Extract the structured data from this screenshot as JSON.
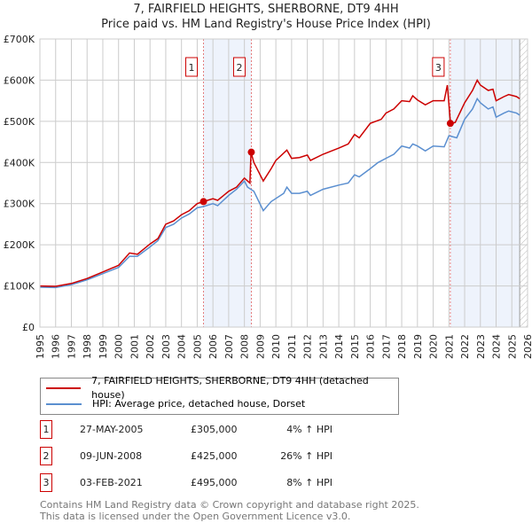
{
  "chart_data": {
    "type": "line",
    "title": "7, FAIRFIELD HEIGHTS, SHERBORNE, DT9 4HH",
    "subtitle": "Price paid vs. HM Land Registry's House Price Index (HPI)",
    "xlim": [
      1995,
      2026
    ],
    "ylim": [
      0,
      700000
    ],
    "x_ticks": [
      "1995",
      "1996",
      "1997",
      "1998",
      "1999",
      "2000",
      "2001",
      "2002",
      "2003",
      "2004",
      "2005",
      "2006",
      "2007",
      "2008",
      "2009",
      "2010",
      "2011",
      "2012",
      "2013",
      "2014",
      "2015",
      "2016",
      "2017",
      "2018",
      "2019",
      "2020",
      "2021",
      "2022",
      "2023",
      "2024",
      "2025",
      "2026"
    ],
    "y_ticks": [
      {
        "v": 0,
        "label": "£0"
      },
      {
        "v": 100000,
        "label": "£100K"
      },
      {
        "v": 200000,
        "label": "£200K"
      },
      {
        "v": 300000,
        "label": "£300K"
      },
      {
        "v": 400000,
        "label": "£400K"
      },
      {
        "v": 500000,
        "label": "£500K"
      },
      {
        "v": 600000,
        "label": "£600K"
      },
      {
        "v": 700000,
        "label": "£700K"
      }
    ],
    "grid": true,
    "series": [
      {
        "name": "7, FAIRFIELD HEIGHTS, SHERBORNE, DT9 4HH (detached house)",
        "color": "#cc0000",
        "x": [
          1995,
          1996,
          1997,
          1998,
          1999,
          2000,
          2000.7,
          2001.2,
          2002,
          2002.5,
          2003,
          2003.5,
          2004,
          2004.5,
          2005,
          2005.4,
          2006,
          2006.3,
          2007,
          2007.5,
          2008,
          2008.35,
          2008.42,
          2008.6,
          2009.2,
          2009.7,
          2010,
          2010.7,
          2011,
          2011.5,
          2012,
          2012.2,
          2013,
          2014,
          2014.6,
          2015,
          2015.3,
          2016,
          2016.7,
          2017,
          2017.5,
          2018,
          2018.5,
          2018.7,
          2019,
          2019.5,
          2020,
          2020.7,
          2020.9,
          2021.1,
          2021.4,
          2022,
          2022.5,
          2022.8,
          2023,
          2023.5,
          2023.8,
          2024,
          2024.5,
          2024.8,
          2025.3,
          2025.5
        ],
        "y": [
          100000,
          99000,
          106000,
          118000,
          134000,
          150000,
          180000,
          177000,
          202000,
          215000,
          250000,
          258000,
          273000,
          283000,
          300000,
          305000,
          312000,
          308000,
          330000,
          340000,
          362000,
          350000,
          425000,
          400000,
          355000,
          385000,
          405000,
          430000,
          410000,
          412000,
          418000,
          405000,
          420000,
          435000,
          445000,
          468000,
          460000,
          495000,
          505000,
          520000,
          530000,
          550000,
          548000,
          562000,
          552000,
          540000,
          550000,
          550000,
          588000,
          495000,
          497000,
          545000,
          575000,
          600000,
          588000,
          575000,
          578000,
          550000,
          560000,
          565000,
          560000,
          555000
        ]
      },
      {
        "name": "HPI: Average price, detached house, Dorset",
        "color": "#5b8fd0",
        "x": [
          1995,
          1996,
          1997,
          1998,
          1999,
          2000,
          2000.7,
          2001.2,
          2002,
          2002.5,
          2003,
          2003.5,
          2004,
          2004.5,
          2005,
          2005.4,
          2006,
          2006.3,
          2007,
          2007.5,
          2008,
          2008.2,
          2008.6,
          2009.2,
          2009.7,
          2010.5,
          2010.7,
          2011,
          2011.5,
          2012,
          2012.2,
          2013,
          2014,
          2014.6,
          2015,
          2015.3,
          2016,
          2016.5,
          2017,
          2017.5,
          2018,
          2018.5,
          2018.7,
          2019,
          2019.5,
          2020,
          2020.7,
          2021,
          2021.5,
          2022,
          2022.5,
          2022.8,
          2023,
          2023.5,
          2023.8,
          2024,
          2024.5,
          2024.8,
          2025.3,
          2025.5
        ],
        "y": [
          97000,
          96000,
          103000,
          115000,
          130000,
          145000,
          172000,
          172000,
          195000,
          210000,
          242000,
          250000,
          265000,
          275000,
          290000,
          293000,
          300000,
          295000,
          320000,
          335000,
          355000,
          340000,
          330000,
          283000,
          305000,
          325000,
          340000,
          325000,
          325000,
          330000,
          320000,
          335000,
          345000,
          350000,
          370000,
          365000,
          385000,
          400000,
          410000,
          420000,
          440000,
          435000,
          445000,
          440000,
          428000,
          440000,
          438000,
          465000,
          460000,
          505000,
          530000,
          555000,
          545000,
          530000,
          535000,
          510000,
          520000,
          525000,
          520000,
          515000
        ]
      }
    ],
    "sales": [
      {
        "n": "1",
        "date": "27-MAY-2005",
        "x": 2005.4,
        "price": "£305,000",
        "value": 305000,
        "hpi": "4% ↑ HPI"
      },
      {
        "n": "2",
        "date": "09-JUN-2008",
        "x": 2008.44,
        "price": "£425,000",
        "value": 425000,
        "hpi": "26% ↑ HPI"
      },
      {
        "n": "3",
        "date": "03-FEB-2021",
        "x": 2021.09,
        "price": "£495,000",
        "value": 495000,
        "hpi": "8% ↑ HPI"
      }
    ],
    "data_end": 2025.5
  },
  "footer": {
    "line1": "Contains HM Land Registry data © Crown copyright and database right 2025.",
    "line2": "This data is licensed under the Open Government Licence v3.0."
  }
}
